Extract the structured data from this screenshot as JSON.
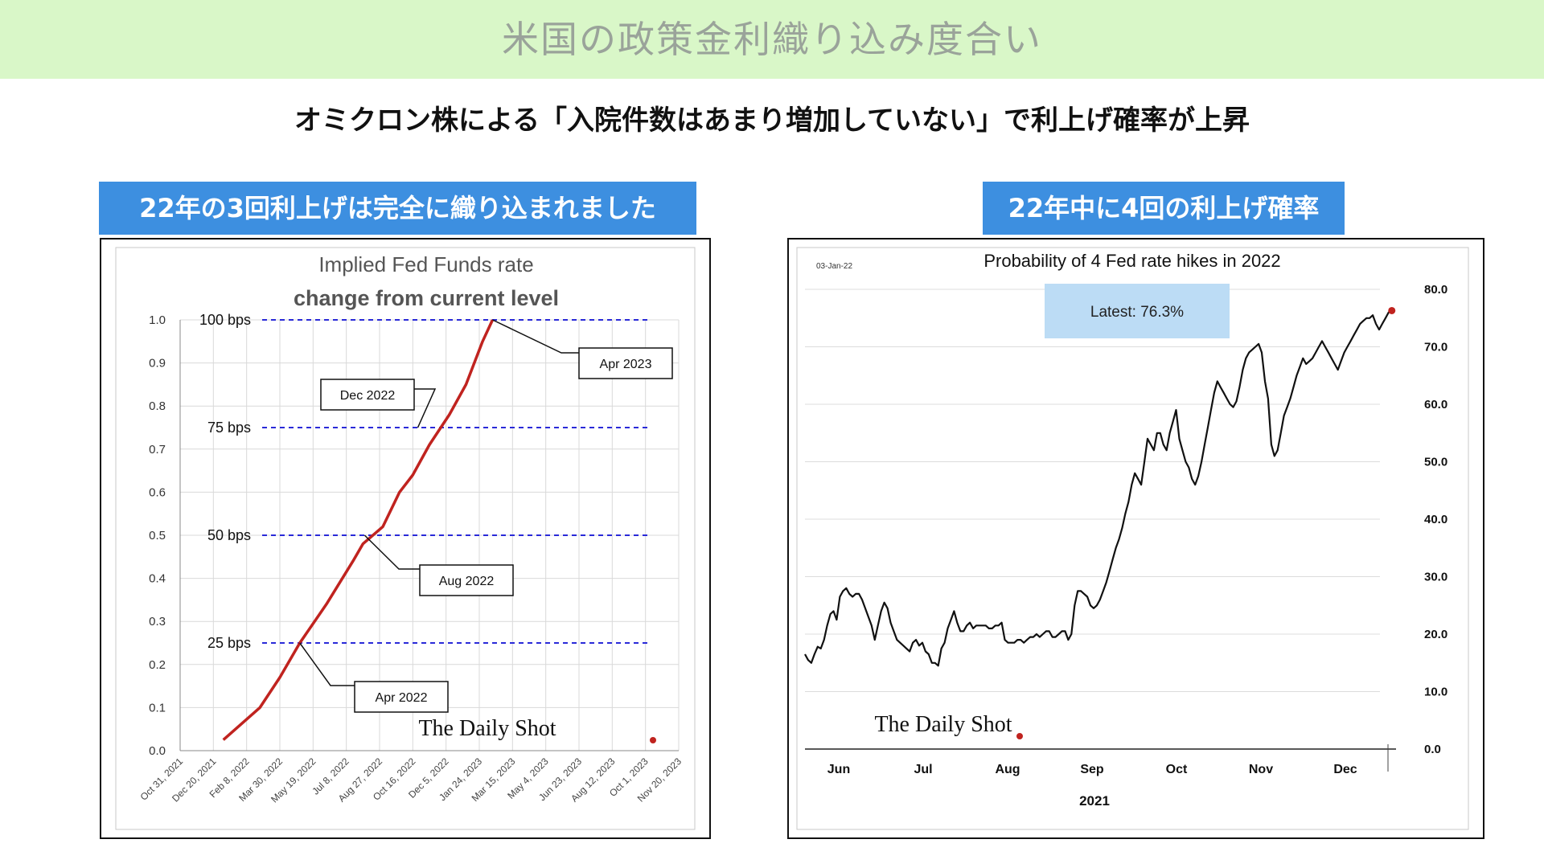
{
  "page": {
    "banner_title": "米国の政策金利織り込み度合い",
    "subtitle": "オミクロン株による「入院件数はあまり増加していない」で利上げ確率が上昇",
    "left_tag": "22年の3回利上げは完全に織り込まれました",
    "right_tag": "22年中に4回の利上げ確率"
  },
  "colors": {
    "banner_bg": "#d9f7c8",
    "banner_text": "#9aa39a",
    "tag_bg": "#3d8fe0",
    "line_red": "#c0231f",
    "dashed_blue": "#2a2ad8",
    "latest_box": "#bcdcf5"
  },
  "chart_data": [
    {
      "type": "line",
      "title": "Implied Fed Funds rate",
      "subtitle": "change from current level",
      "xlabel": "",
      "ylabel": "",
      "ylim": [
        0,
        1.0
      ],
      "yticks": [
        "0.0",
        "0.1",
        "0.2",
        "0.3",
        "0.4",
        "0.5",
        "0.6",
        "0.7",
        "0.8",
        "0.9",
        "1.0"
      ],
      "x_tick_labels": [
        "Oct 31, 2021",
        "Dec 20, 2021",
        "Feb 8, 2022",
        "Mar 30, 2022",
        "May 19, 2022",
        "Jul 8, 2022",
        "Aug 27, 2022",
        "Oct 16, 2022",
        "Dec 5, 2022",
        "Jan 24, 2023",
        "Mar 15, 2023",
        "May 4, 2023",
        "Jun 23, 2023",
        "Aug 12, 2023",
        "Oct 1, 2023",
        "Nov 20, 2023"
      ],
      "grid": true,
      "series": [
        {
          "x": [
            1.3,
            2.4,
            3.0,
            3.6,
            4.4,
            5.2,
            5.5,
            6.1,
            6.6,
            7.0,
            7.5,
            8.1,
            8.6,
            9.1
          ],
          "y": [
            0.025,
            0.1,
            0.17,
            0.25,
            0.34,
            0.44,
            0.48,
            0.52,
            0.6,
            0.64,
            0.71,
            0.78,
            0.85,
            0.95
          ]
        }
      ],
      "x_end": 9.4,
      "y_end": 1.0,
      "reference_lines": [
        {
          "label": "25 bps",
          "value": 0.25
        },
        {
          "label": "50 bps",
          "value": 0.5
        },
        {
          "label": "75 bps",
          "value": 0.75
        },
        {
          "label": "100 bps",
          "value": 1.0
        }
      ],
      "callouts": [
        "Apr 2022",
        "Aug 2022",
        "Dec 2022",
        "Apr 2023"
      ],
      "source": "The Daily Shot"
    },
    {
      "type": "line",
      "title": "Probability of 4 Fed rate hikes in 2022",
      "date_label": "03-Jan-22",
      "latest_label": "Latest:  76.3%",
      "latest_value": 76.3,
      "xlabel": "2021",
      "ylabel": "",
      "ylim": [
        0,
        80
      ],
      "yticks": [
        "0.0",
        "10.0",
        "20.0",
        "30.0",
        "40.0",
        "50.0",
        "60.0",
        "70.0",
        "80.0"
      ],
      "months": [
        "Jun",
        "Jul",
        "Aug",
        "Sep",
        "Oct",
        "Nov",
        "Dec"
      ],
      "axis_position": "right",
      "grid": true,
      "source": "The Daily Shot",
      "series_values": [
        16.5,
        15.5,
        15,
        16.5,
        17.8,
        17.5,
        19,
        21.5,
        23.5,
        24,
        22.5,
        26.5,
        27.5,
        28,
        27,
        26.5,
        27,
        27,
        26,
        24.5,
        23,
        21.5,
        19,
        21.5,
        24,
        25.5,
        24.5,
        22,
        20.5,
        19,
        18.5,
        18,
        17.5,
        17,
        18.5,
        19,
        18,
        18.5,
        17,
        16.5,
        15,
        15,
        14.5,
        17.5,
        18.5,
        21,
        22.5,
        24,
        22,
        20.5,
        20.5,
        21.5,
        22,
        21,
        21.5,
        21.5,
        21.5,
        21.5,
        21,
        21,
        21.5,
        21.5,
        22,
        19,
        18.5,
        18.5,
        18.5,
        19,
        19,
        18.5,
        19,
        19.5,
        19.5,
        20,
        19.5,
        20,
        20.5,
        20.5,
        19.5,
        19.5,
        20,
        20.5,
        20.5,
        19,
        20,
        25,
        27.5,
        27.5,
        27,
        26.5,
        25,
        24.5,
        25,
        26,
        27.5,
        29,
        31,
        33,
        35,
        36.5,
        38.5,
        41,
        43,
        46,
        48,
        47,
        46,
        50,
        54,
        53,
        52,
        55,
        55,
        53,
        52,
        55,
        57,
        59,
        54,
        52,
        50,
        49,
        47,
        46,
        47.5,
        50,
        53,
        56,
        59,
        62,
        64,
        63,
        62,
        61,
        60,
        59.5,
        60.5,
        63,
        66,
        68,
        69,
        69.5,
        70,
        70.5,
        69,
        64,
        61,
        53,
        51,
        52,
        55,
        58,
        59.5,
        61,
        63,
        65,
        66.5,
        68,
        67,
        67.5,
        68,
        69,
        70,
        71,
        70,
        69,
        68,
        67,
        66,
        67.5,
        69,
        70,
        71,
        72,
        73,
        74,
        74.5,
        75,
        75,
        75.5,
        74,
        73,
        74,
        75,
        76,
        76.3
      ],
      "x_start": 5.1,
      "x_end": 12.05
    }
  ]
}
